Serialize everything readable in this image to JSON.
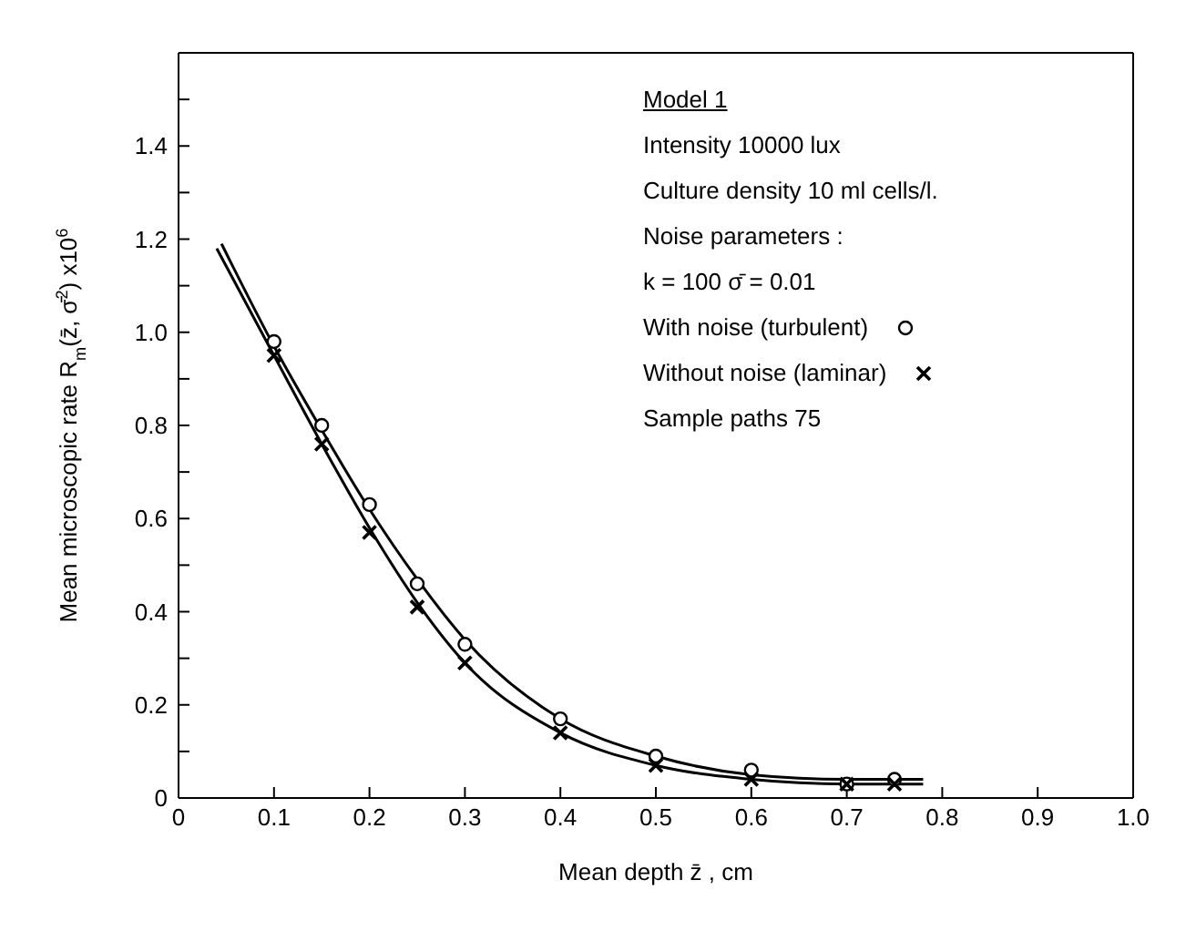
{
  "chart_data": {
    "type": "scatter",
    "xlabel": "Mean depth z̄ , cm",
    "ylabel": "Mean microscopic rate R$_{m}$(z̄, σ̄$^{2}$) x10$^{6}$",
    "annotations": [
      "Model 1",
      "Intensity 10000 lux",
      "Culture density 10 ml cells/l.",
      "Noise parameters :",
      "k = 100   σ̄ = 0.01",
      "Sample paths 75"
    ],
    "xlim": [
      0,
      1.0
    ],
    "xticks": [
      0,
      0.1,
      0.2,
      0.3,
      0.4,
      0.5,
      0.6,
      0.7,
      0.8,
      0.9,
      {
        "value": 1.0,
        "label": "1.0"
      }
    ],
    "ylim": [
      0,
      1.6
    ],
    "yticks": [
      0,
      {
        "value": 0.1,
        "label": null
      },
      0.2,
      {
        "value": 0.3,
        "label": null
      },
      0.4,
      {
        "value": 0.5,
        "label": null
      },
      0.6,
      {
        "value": 0.7,
        "label": null
      },
      0.8,
      {
        "value": 0.9,
        "label": null
      },
      {
        "value": 1.0,
        "label": "1.0"
      },
      {
        "value": 1.1,
        "label": null
      },
      1.2,
      {
        "value": 1.3,
        "label": null
      },
      1.4,
      {
        "value": 1.5,
        "label": null
      }
    ],
    "legend": "top right",
    "series": [
      {
        "name": "With noise (turbulent)",
        "marker": "circle",
        "color": "#000000",
        "x": [
          0.1,
          0.15,
          0.2,
          0.25,
          0.3,
          0.4,
          0.5,
          0.6,
          0.7,
          0.75
        ],
        "values": [
          0.98,
          0.8,
          0.63,
          0.46,
          0.33,
          0.17,
          0.09,
          0.06,
          0.03,
          0.04
        ]
      },
      {
        "name": "Without noise (laminar)",
        "marker": "cross",
        "color": "#000000",
        "x": [
          0.1,
          0.15,
          0.2,
          0.25,
          0.3,
          0.4,
          0.5,
          0.6,
          0.7,
          0.75
        ],
        "values": [
          0.95,
          0.76,
          0.57,
          0.41,
          0.29,
          0.14,
          0.07,
          0.04,
          0.03,
          0.03
        ]
      },
      {
        "type": "line",
        "marker": "none",
        "color": "#000000",
        "x": [
          0.045,
          0.1,
          0.15,
          0.2,
          0.25,
          0.3,
          0.4,
          0.5,
          0.6,
          0.7,
          0.78
        ],
        "values": [
          1.19,
          0.97,
          0.79,
          0.62,
          0.47,
          0.34,
          0.17,
          0.09,
          0.05,
          0.04,
          0.04
        ]
      },
      {
        "type": "line",
        "marker": "none",
        "color": "#000000",
        "x": [
          0.04,
          0.1,
          0.15,
          0.2,
          0.25,
          0.3,
          0.4,
          0.5,
          0.6,
          0.7,
          0.78
        ],
        "values": [
          1.18,
          0.95,
          0.76,
          0.58,
          0.42,
          0.29,
          0.14,
          0.07,
          0.04,
          0.03,
          0.03
        ]
      }
    ]
  }
}
